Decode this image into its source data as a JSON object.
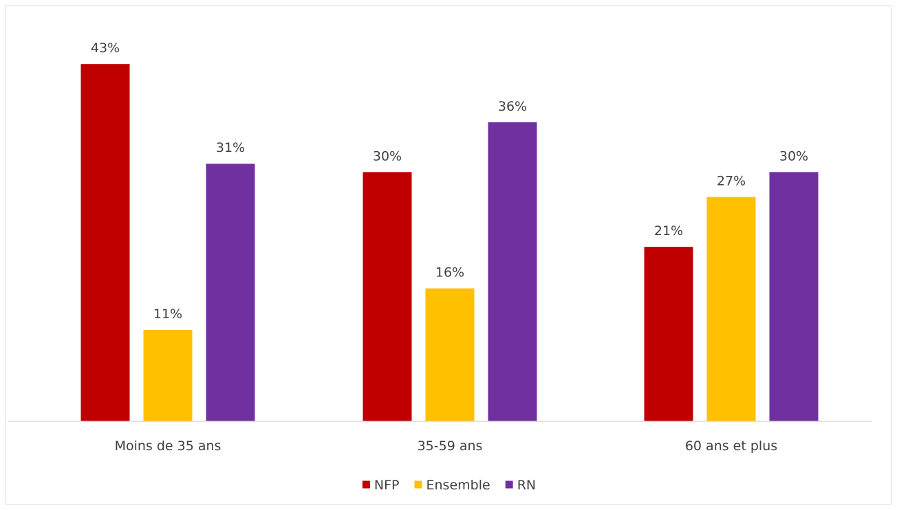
{
  "chart_data": {
    "type": "bar",
    "title": "",
    "xlabel": "",
    "ylabel": "",
    "ylim": [
      0,
      45
    ],
    "grid": false,
    "legend_position": "bottom",
    "value_suffix": "%",
    "categories": [
      "Moins de 35 ans",
      "35-59 ans",
      "60 ans et plus"
    ],
    "series": [
      {
        "name": "NFP",
        "color": "#c00000",
        "values": [
          43,
          30,
          21
        ]
      },
      {
        "name": "Ensemble",
        "color": "#ffc000",
        "values": [
          11,
          16,
          27
        ]
      },
      {
        "name": "RN",
        "color": "#7030a0",
        "values": [
          31,
          36,
          30
        ]
      }
    ]
  }
}
